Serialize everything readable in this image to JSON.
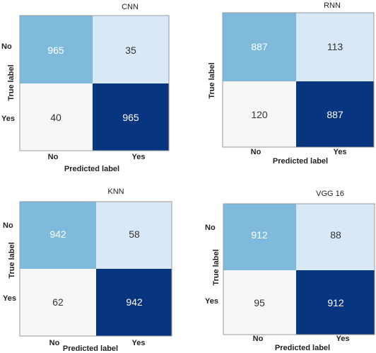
{
  "chart_data": [
    {
      "type": "heatmap",
      "title": "CNN",
      "xlabel": "Predicted label",
      "ylabel": "True label",
      "x_categories": [
        "No",
        "Yes"
      ],
      "y_categories": [
        "No",
        "Yes"
      ],
      "matrix": [
        [
          965,
          35
        ],
        [
          40,
          965
        ]
      ],
      "colors": [
        [
          "#7fbadc",
          "#d9e8f7"
        ],
        [
          "#f7f7f7",
          "#08357f"
        ]
      ],
      "text_colors": [
        [
          "#ffffff",
          "#333333"
        ],
        [
          "#333333",
          "#ffffff"
        ]
      ]
    },
    {
      "type": "heatmap",
      "title": "RNN",
      "xlabel": "Predicted label",
      "ylabel": "True label",
      "x_categories": [
        "No",
        "Yes"
      ],
      "y_categories": [
        "",
        ""
      ],
      "matrix": [
        [
          887,
          113
        ],
        [
          120,
          887
        ]
      ],
      "colors": [
        [
          "#7fbadc",
          "#d9e8f7"
        ],
        [
          "#f7f7f7",
          "#08357f"
        ]
      ],
      "text_colors": [
        [
          "#ffffff",
          "#333333"
        ],
        [
          "#333333",
          "#ffffff"
        ]
      ]
    },
    {
      "type": "heatmap",
      "title": "KNN",
      "xlabel": "Predicted label",
      "ylabel": "True label",
      "x_categories": [
        "No",
        "Yes"
      ],
      "y_categories": [
        "No",
        "Yes"
      ],
      "matrix": [
        [
          942,
          58
        ],
        [
          62,
          942
        ]
      ],
      "colors": [
        [
          "#7fbadc",
          "#d9e8f7"
        ],
        [
          "#f7f7f7",
          "#08357f"
        ]
      ],
      "text_colors": [
        [
          "#ffffff",
          "#333333"
        ],
        [
          "#333333",
          "#ffffff"
        ]
      ]
    },
    {
      "type": "heatmap",
      "title": "VGG 16",
      "xlabel": "Predicted label",
      "ylabel": "True label",
      "x_categories": [
        "No",
        "Yes"
      ],
      "y_categories": [
        "No",
        "Yes"
      ],
      "matrix": [
        [
          912,
          88
        ],
        [
          95,
          912
        ]
      ],
      "colors": [
        [
          "#7fbadc",
          "#d9e8f7"
        ],
        [
          "#f7f7f7",
          "#08357f"
        ]
      ],
      "text_colors": [
        [
          "#ffffff",
          "#333333"
        ],
        [
          "#333333",
          "#ffffff"
        ]
      ]
    }
  ]
}
